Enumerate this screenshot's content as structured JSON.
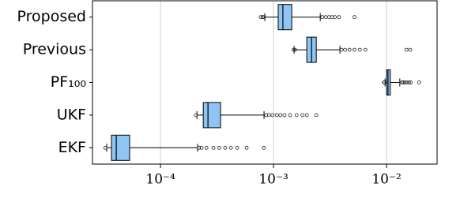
{
  "chart_data": {
    "type": "box",
    "orientation": "horizontal",
    "xscale": "log",
    "grid": true,
    "color": "#8ec5f5",
    "categories": [
      "Proposed",
      "Previous",
      "PF₁₀₀",
      "UKF",
      "EKF"
    ],
    "boxes": [
      {
        "whisker_low": 0.000838,
        "q1": 0.0011,
        "median": 0.00121,
        "q3": 0.00145,
        "whisker_high": 0.00259,
        "outliers": [
          0.00077,
          0.0008,
          0.00082,
          0.0027,
          0.0029,
          0.0031,
          0.0033,
          0.0035,
          0.0038,
          0.0052
        ]
      },
      {
        "whisker_low": 0.00152,
        "q1": 0.00197,
        "median": 0.00217,
        "q3": 0.00239,
        "whisker_high": 0.00387,
        "outliers": [
          0.0015,
          0.00155,
          0.004,
          0.0043,
          0.0047,
          0.0052,
          0.0058,
          0.0065,
          0.015,
          0.0162
        ]
      },
      {
        "whisker_low": 0.0097,
        "q1": 0.01,
        "median": 0.0103,
        "q3": 0.0108,
        "whisker_high": 0.0131,
        "outliers": [
          0.0096,
          0.0095,
          0.0137,
          0.014,
          0.0145,
          0.0151,
          0.0158,
          0.0164,
          0.0194
        ]
      },
      {
        "whisker_low": 0.00021,
        "q1": 0.000239,
        "median": 0.000263,
        "q3": 0.00034,
        "whisker_high": 0.000824,
        "outliers": [
          0.000205,
          0.00086,
          0.00091,
          0.00098,
          0.00107,
          0.00115,
          0.00125,
          0.0014,
          0.0016,
          0.0018,
          0.00197,
          0.00239
        ]
      },
      {
        "whisker_low": 3.34e-05,
        "q1": 3.68e-05,
        "median": 4.06e-05,
        "q3": 5.33e-05,
        "whisker_high": 0.000213,
        "outliers": [
          3.25e-05,
          0.000219,
          0.000231,
          0.000255,
          0.000294,
          0.00033,
          0.000374,
          0.00042,
          0.000477,
          0.000578,
          0.00082
        ]
      }
    ],
    "xlim": [
      2.5e-05,
      0.028
    ],
    "xticks": [
      {
        "value": 0.0001,
        "label": "10⁻⁴"
      },
      {
        "value": 0.001,
        "label": "10⁻³"
      },
      {
        "value": 0.01,
        "label": "10⁻²"
      }
    ]
  }
}
